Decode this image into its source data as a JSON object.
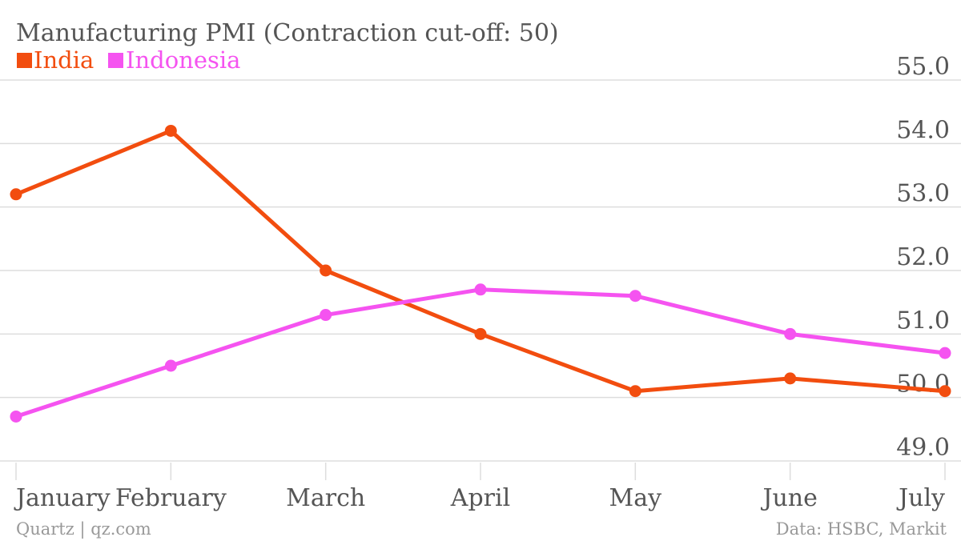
{
  "chart_data": {
    "type": "line",
    "title": "Manufacturing PMI (Contraction cut-off: 50)",
    "categories": [
      "January",
      "February",
      "March",
      "April",
      "May",
      "June",
      "July"
    ],
    "series": [
      {
        "name": "India",
        "color": "#f24d0f",
        "values": [
          53.2,
          54.2,
          52.0,
          51.0,
          50.1,
          50.3,
          50.1
        ]
      },
      {
        "name": "Indonesia",
        "color": "#f553f0",
        "values": [
          49.7,
          50.5,
          51.3,
          51.7,
          51.6,
          51.0,
          50.7
        ]
      }
    ],
    "y_ticks": [
      "55.0",
      "54.0",
      "53.0",
      "52.0",
      "51.0",
      "50.0",
      "49.0"
    ],
    "ylim": [
      49,
      55
    ],
    "legend_position": "top-left",
    "grid": true
  },
  "footer": {
    "source_left": "Quartz | qz.com",
    "source_right": "Data: HSBC, Markit"
  }
}
